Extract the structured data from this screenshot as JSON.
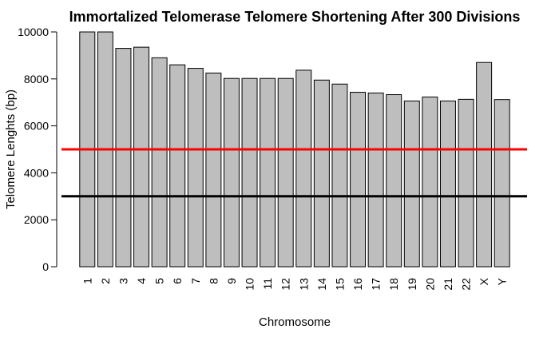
{
  "chart_data": {
    "type": "bar",
    "title": "Immortalized Telomerase Telomere Shortening After  300  Divisions",
    "xlabel": "Chromosome",
    "ylabel": "Telomere Lenghts (bp)",
    "ylim": [
      0,
      10000
    ],
    "yticks": [
      0,
      2000,
      4000,
      6000,
      8000,
      10000
    ],
    "grid": false,
    "categories": [
      "1",
      "2",
      "3",
      "4",
      "5",
      "6",
      "7",
      "8",
      "9",
      "10",
      "11",
      "12",
      "13",
      "14",
      "15",
      "16",
      "17",
      "18",
      "19",
      "20",
      "21",
      "22",
      "X",
      "Y"
    ],
    "values": [
      10000,
      10000,
      9300,
      9350,
      8900,
      8600,
      8450,
      8250,
      8020,
      8020,
      8020,
      8020,
      8370,
      7950,
      7780,
      7430,
      7400,
      7330,
      7060,
      7230,
      7060,
      7130,
      8700,
      7120
    ],
    "bar_color": "#bebebe",
    "bar_edge_color": "#000000",
    "reference_lines": [
      {
        "y": 5000,
        "color": "#ff0000"
      },
      {
        "y": 3000,
        "color": "#000000"
      }
    ]
  }
}
